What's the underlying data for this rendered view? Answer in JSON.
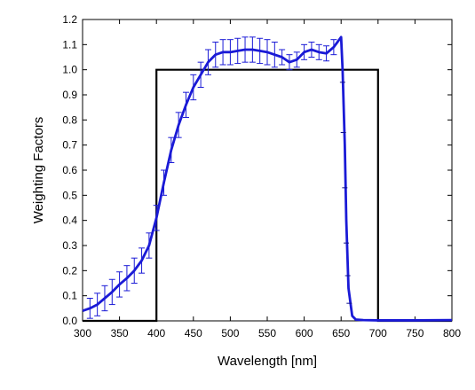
{
  "chart_data": {
    "type": "line",
    "title": "",
    "xlabel": "Wavelength [nm]",
    "ylabel": "Weighting Factors",
    "xlim": [
      300,
      800
    ],
    "ylim": [
      0,
      1.2
    ],
    "x_ticks": [
      300,
      350,
      400,
      450,
      500,
      550,
      600,
      650,
      700,
      750,
      800
    ],
    "y_ticks": [
      0.0,
      0.1,
      0.2,
      0.3,
      0.4,
      0.5,
      0.6,
      0.7,
      0.8,
      0.9,
      1.0,
      1.1,
      1.2
    ],
    "x_tick_labels": [
      "300",
      "350",
      "400",
      "450",
      "500",
      "550",
      "600",
      "650",
      "700",
      "750",
      "800"
    ],
    "y_tick_labels": [
      "0.0",
      "0.1",
      "0.2",
      "0.3",
      "0.4",
      "0.5",
      "0.6",
      "0.7",
      "0.8",
      "0.9",
      "1.0",
      "1.1",
      "1.2"
    ],
    "grid": false,
    "series": [
      {
        "color": "#000000",
        "x": [
          300,
          400,
          400,
          700,
          700,
          800
        ],
        "y": [
          0.0,
          0.0,
          1.0,
          1.0,
          0.0,
          0.0
        ]
      },
      {
        "color": "#1a1ad6",
        "x": [
          300,
          310,
          320,
          330,
          340,
          350,
          360,
          370,
          380,
          390,
          400,
          410,
          420,
          430,
          440,
          450,
          460,
          470,
          480,
          490,
          500,
          510,
          520,
          530,
          540,
          550,
          560,
          570,
          580,
          590,
          600,
          610,
          620,
          630,
          640,
          650,
          652,
          655,
          657,
          660,
          665,
          670,
          680,
          700,
          750,
          800
        ],
        "y": [
          0.04,
          0.05,
          0.065,
          0.09,
          0.115,
          0.145,
          0.17,
          0.2,
          0.24,
          0.3,
          0.41,
          0.55,
          0.68,
          0.78,
          0.86,
          0.93,
          0.98,
          1.03,
          1.06,
          1.07,
          1.07,
          1.075,
          1.08,
          1.08,
          1.075,
          1.07,
          1.06,
          1.05,
          1.03,
          1.04,
          1.07,
          1.08,
          1.07,
          1.065,
          1.09,
          1.13,
          1.0,
          0.7,
          0.4,
          0.13,
          0.02,
          0.005,
          0.003,
          0.002,
          0.002,
          0.003
        ],
        "error": [
          0.035,
          0.04,
          0.045,
          0.05,
          0.05,
          0.05,
          0.05,
          0.05,
          0.05,
          0.05,
          0.05,
          0.05,
          0.05,
          0.05,
          0.05,
          0.05,
          0.05,
          0.05,
          0.05,
          0.05,
          0.05,
          0.05,
          0.05,
          0.05,
          0.05,
          0.05,
          0.05,
          0.03,
          0.03,
          0.03,
          0.03,
          0.03,
          0.03,
          0.03,
          0.03,
          0.03,
          0.0,
          0.0,
          0.0,
          0.0,
          0.0,
          0.0,
          0.0,
          0.0,
          0.0,
          0.0
        ],
        "error_bars_x": [
          310,
          320,
          330,
          340,
          350,
          360,
          370,
          380,
          390,
          400,
          410,
          420,
          430,
          440,
          450,
          460,
          470,
          480,
          490,
          500,
          510,
          520,
          530,
          540,
          550,
          560,
          570,
          580,
          590,
          600,
          610,
          620,
          630,
          640
        ]
      }
    ],
    "marker_ticks": {
      "x": [
        652,
        653,
        655,
        657,
        659,
        661
      ],
      "y": [
        0.95,
        0.75,
        0.53,
        0.31,
        0.18,
        0.07
      ]
    }
  }
}
